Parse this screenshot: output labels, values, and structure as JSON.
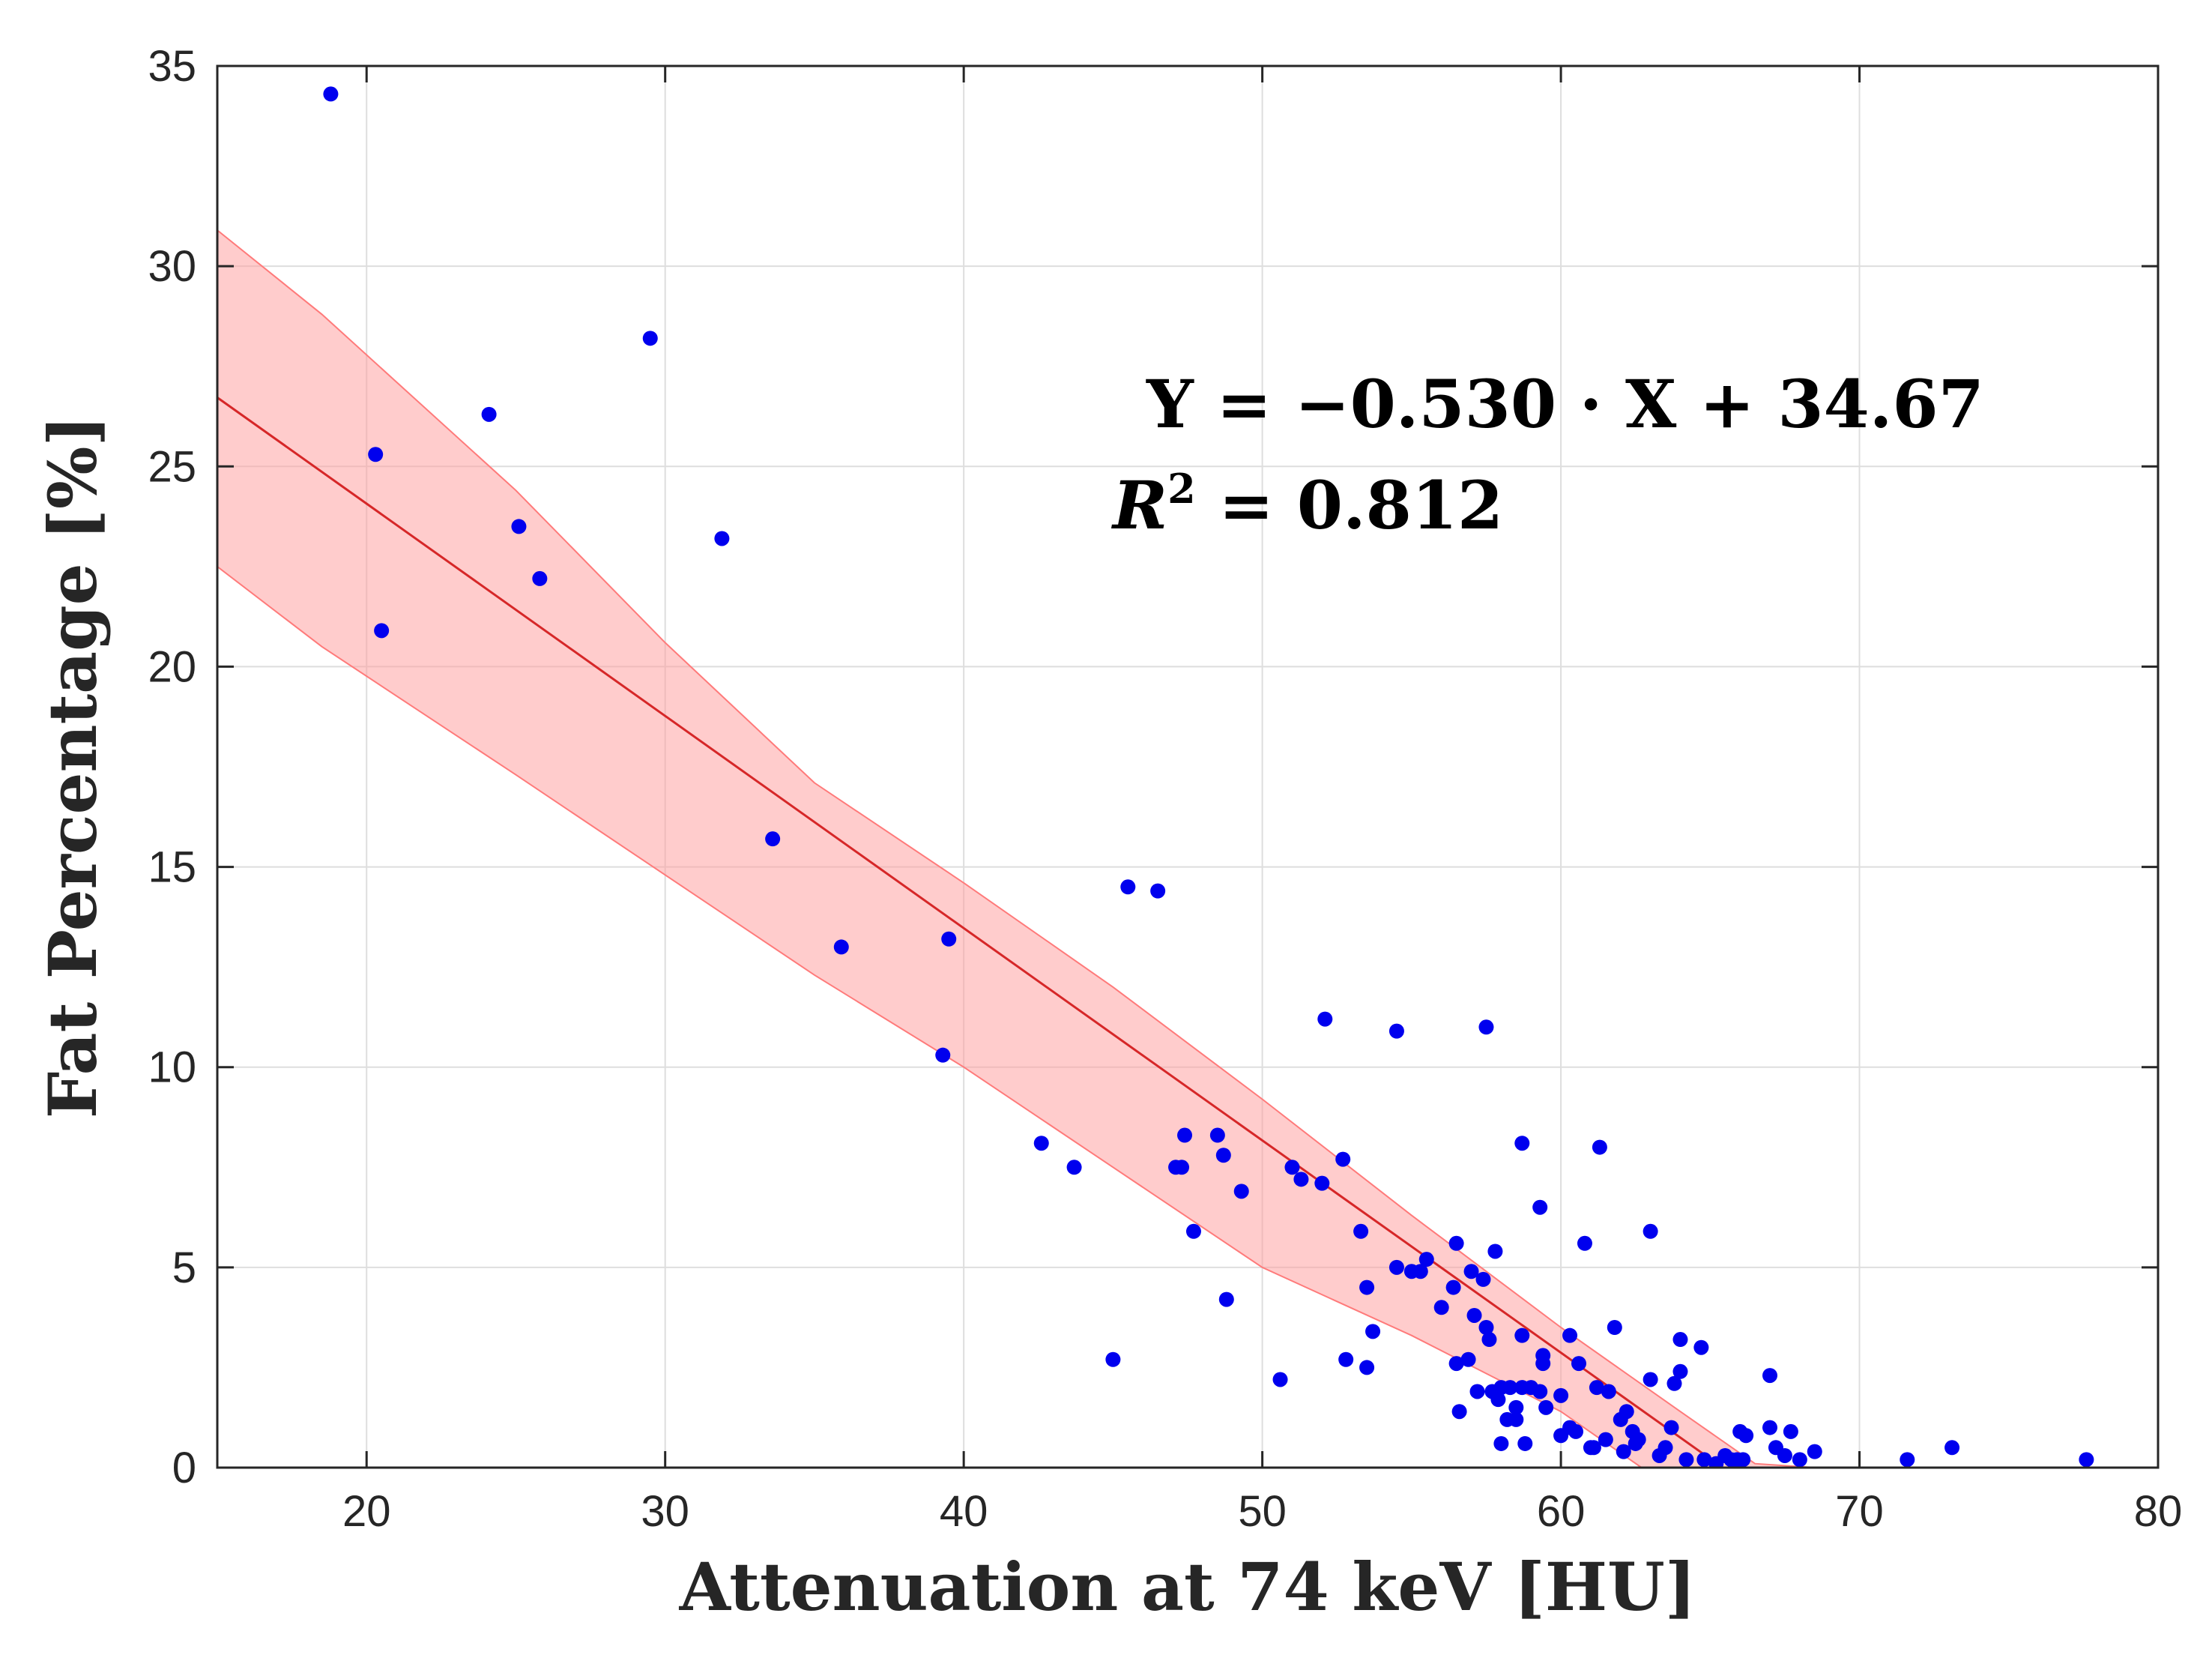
{
  "chart_data": {
    "type": "scatter",
    "title": "",
    "xlabel": "Attenuation at 74 keV [HU]",
    "ylabel": "Fat Percentage [%]",
    "xlim": [
      15,
      80
    ],
    "ylim": [
      0,
      35
    ],
    "xticks": [
      20,
      30,
      40,
      50,
      60,
      70,
      80
    ],
    "yticks": [
      0,
      5,
      10,
      15,
      20,
      25,
      30,
      35
    ],
    "grid": true,
    "fit": {
      "slope": -0.53,
      "intercept": 34.67,
      "color": "#d62728"
    },
    "confidence_band": {
      "color": "#ff9a9a",
      "upper": [
        [
          15,
          30.9
        ],
        [
          18.5,
          28.8
        ],
        [
          25,
          24.4
        ],
        [
          30,
          20.6
        ],
        [
          35,
          17.1
        ],
        [
          40,
          14.6
        ],
        [
          45,
          12.0
        ],
        [
          50,
          9.2
        ],
        [
          55,
          6.3
        ],
        [
          60,
          3.5
        ],
        [
          64,
          1.4
        ],
        [
          66.5,
          0.1
        ],
        [
          68.5,
          0.0
        ]
      ],
      "lower": [
        [
          15,
          22.5
        ],
        [
          18.5,
          20.5
        ],
        [
          25,
          17.3
        ],
        [
          30,
          14.8
        ],
        [
          35,
          12.3
        ],
        [
          40,
          10.0
        ],
        [
          45,
          7.5
        ],
        [
          50,
          5.0
        ],
        [
          55,
          3.3
        ],
        [
          60,
          1.4
        ],
        [
          62.7,
          0.0
        ]
      ]
    },
    "points_color": "#0000ee",
    "points": [
      [
        18.8,
        34.3
      ],
      [
        20.3,
        25.3
      ],
      [
        20.5,
        20.9
      ],
      [
        24.1,
        26.3
      ],
      [
        25.1,
        23.5
      ],
      [
        25.8,
        22.2
      ],
      [
        29.5,
        28.2
      ],
      [
        31.9,
        23.2
      ],
      [
        33.6,
        15.7
      ],
      [
        35.9,
        13.0
      ],
      [
        39.3,
        10.3
      ],
      [
        39.5,
        13.2
      ],
      [
        42.6,
        8.1
      ],
      [
        43.7,
        7.5
      ],
      [
        45.0,
        2.7
      ],
      [
        45.5,
        14.5
      ],
      [
        46.5,
        14.4
      ],
      [
        47.1,
        7.5
      ],
      [
        47.3,
        7.5
      ],
      [
        47.4,
        8.3
      ],
      [
        47.7,
        5.9
      ],
      [
        48.5,
        8.3
      ],
      [
        48.7,
        7.8
      ],
      [
        48.8,
        4.2
      ],
      [
        49.3,
        6.9
      ],
      [
        50.6,
        2.2
      ],
      [
        51.0,
        7.5
      ],
      [
        51.3,
        7.2
      ],
      [
        52.0,
        7.1
      ],
      [
        52.1,
        11.2
      ],
      [
        52.7,
        7.7
      ],
      [
        52.8,
        2.7
      ],
      [
        53.3,
        5.9
      ],
      [
        53.5,
        2.5
      ],
      [
        53.5,
        4.5
      ],
      [
        53.7,
        3.4
      ],
      [
        54.5,
        10.9
      ],
      [
        54.5,
        5.0
      ],
      [
        55.0,
        4.9
      ],
      [
        55.3,
        4.9
      ],
      [
        55.5,
        5.2
      ],
      [
        56.0,
        4.0
      ],
      [
        56.4,
        4.5
      ],
      [
        56.5,
        5.6
      ],
      [
        56.5,
        2.6
      ],
      [
        56.6,
        1.4
      ],
      [
        56.9,
        2.7
      ],
      [
        57.0,
        4.9
      ],
      [
        57.1,
        3.8
      ],
      [
        57.2,
        1.9
      ],
      [
        57.4,
        4.7
      ],
      [
        57.5,
        11.0
      ],
      [
        57.5,
        3.5
      ],
      [
        57.6,
        3.2
      ],
      [
        57.7,
        1.9
      ],
      [
        57.8,
        5.4
      ],
      [
        57.9,
        1.7
      ],
      [
        58.0,
        2.0
      ],
      [
        58.0,
        0.6
      ],
      [
        58.2,
        1.2
      ],
      [
        58.3,
        2.0
      ],
      [
        58.5,
        1.5
      ],
      [
        58.5,
        1.2
      ],
      [
        58.7,
        2.0
      ],
      [
        58.7,
        8.1
      ],
      [
        58.7,
        3.3
      ],
      [
        58.8,
        0.6
      ],
      [
        59.0,
        2.0
      ],
      [
        59.3,
        1.9
      ],
      [
        59.3,
        6.5
      ],
      [
        59.4,
        2.8
      ],
      [
        59.4,
        2.6
      ],
      [
        59.5,
        1.5
      ],
      [
        60.0,
        1.8
      ],
      [
        60.0,
        0.8
      ],
      [
        60.3,
        1.0
      ],
      [
        60.3,
        3.3
      ],
      [
        60.5,
        0.9
      ],
      [
        60.6,
        2.6
      ],
      [
        60.8,
        5.6
      ],
      [
        61.0,
        0.5
      ],
      [
        61.1,
        0.5
      ],
      [
        61.2,
        2.0
      ],
      [
        61.3,
        8.0
      ],
      [
        61.5,
        0.7
      ],
      [
        61.6,
        1.9
      ],
      [
        61.8,
        3.5
      ],
      [
        62.0,
        1.2
      ],
      [
        62.1,
        0.4
      ],
      [
        62.2,
        1.4
      ],
      [
        62.4,
        0.9
      ],
      [
        62.5,
        0.6
      ],
      [
        62.6,
        0.7
      ],
      [
        63.0,
        2.2
      ],
      [
        63.0,
        5.9
      ],
      [
        63.3,
        0.3
      ],
      [
        63.5,
        0.5
      ],
      [
        63.7,
        1.0
      ],
      [
        63.8,
        2.1
      ],
      [
        64.0,
        3.2
      ],
      [
        64.0,
        2.4
      ],
      [
        64.2,
        0.2
      ],
      [
        64.7,
        3.0
      ],
      [
        64.8,
        0.2
      ],
      [
        65.2,
        0.1
      ],
      [
        65.5,
        0.3
      ],
      [
        65.7,
        0.2
      ],
      [
        65.9,
        0.2
      ],
      [
        66.0,
        0.9
      ],
      [
        66.1,
        0.2
      ],
      [
        66.2,
        0.8
      ],
      [
        67.0,
        1.0
      ],
      [
        67.0,
        2.3
      ],
      [
        67.2,
        0.5
      ],
      [
        67.5,
        0.3
      ],
      [
        67.7,
        0.9
      ],
      [
        68.0,
        0.2
      ],
      [
        68.5,
        0.4
      ],
      [
        71.6,
        0.2
      ],
      [
        73.1,
        0.5
      ],
      [
        77.6,
        0.2
      ]
    ],
    "annotations": {
      "equation_parts": [
        "Y = ",
        "−0.530 · X + 34.67"
      ],
      "r2_symbol": "R",
      "r2_exponent": "2",
      "r2_value": " = 0.812"
    }
  }
}
